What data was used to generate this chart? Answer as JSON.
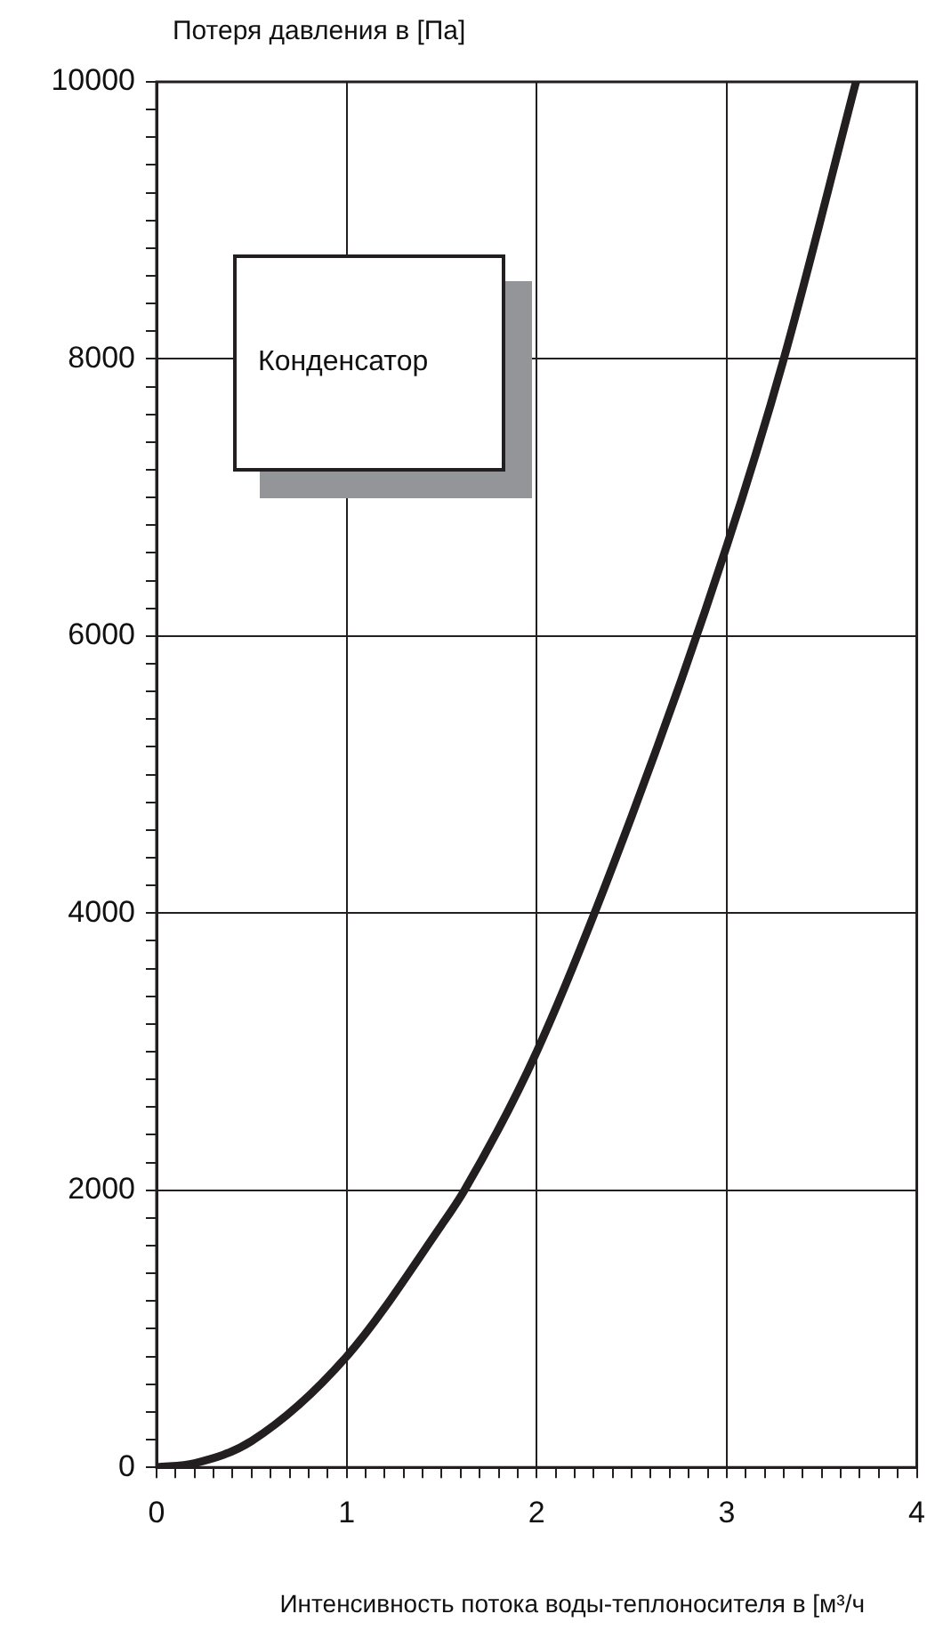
{
  "chart_data": {
    "type": "line",
    "xlabel": "Интенсивность потока воды-теплоносителя в [м³/ч",
    "ylabel": "Потеря давления в [Па]",
    "annotations": [
      "Конденсатор"
    ],
    "series": [
      {
        "color": "#231f20",
        "x": [
          0,
          0.2,
          0.5,
          1,
          1.5,
          1.62,
          2,
          2.5,
          3,
          3.3,
          3.68
        ],
        "values": [
          0,
          30,
          190,
          800,
          1750,
          2000,
          3000,
          4700,
          6650,
          8000,
          10000
        ]
      }
    ],
    "xlim": [
      0,
      4
    ],
    "ylim": [
      0,
      10000
    ],
    "xticks": [
      0,
      {
        "value": 0.1,
        "label": null
      },
      {
        "value": 0.2,
        "label": null
      },
      {
        "value": 0.3,
        "label": null
      },
      {
        "value": 0.4,
        "label": null
      },
      {
        "value": 0.5,
        "label": null
      },
      {
        "value": 0.6,
        "label": null
      },
      {
        "value": 0.7,
        "label": null
      },
      {
        "value": 0.8,
        "label": null
      },
      {
        "value": 0.9,
        "label": null
      },
      1,
      {
        "value": 1.1,
        "label": null
      },
      {
        "value": 1.2,
        "label": null
      },
      {
        "value": 1.3,
        "label": null
      },
      {
        "value": 1.4,
        "label": null
      },
      {
        "value": 1.5,
        "label": null
      },
      {
        "value": 1.6,
        "label": null
      },
      {
        "value": 1.7,
        "label": null
      },
      {
        "value": 1.8,
        "label": null
      },
      {
        "value": 1.9,
        "label": null
      },
      2,
      {
        "value": 2.1,
        "label": null
      },
      {
        "value": 2.2,
        "label": null
      },
      {
        "value": 2.3,
        "label": null
      },
      {
        "value": 2.4,
        "label": null
      },
      {
        "value": 2.5,
        "label": null
      },
      {
        "value": 2.6,
        "label": null
      },
      {
        "value": 2.7,
        "label": null
      },
      {
        "value": 2.8,
        "label": null
      },
      {
        "value": 2.9,
        "label": null
      },
      3,
      {
        "value": 3.1,
        "label": null
      },
      {
        "value": 3.2,
        "label": null
      },
      {
        "value": 3.3,
        "label": null
      },
      {
        "value": 3.4,
        "label": null
      },
      {
        "value": 3.5,
        "label": null
      },
      {
        "value": 3.6,
        "label": null
      },
      {
        "value": 3.7,
        "label": null
      },
      {
        "value": 3.8,
        "label": null
      },
      {
        "value": 3.9,
        "label": null
      },
      4
    ],
    "yticks": [
      0,
      {
        "value": 200,
        "label": null
      },
      {
        "value": 400,
        "label": null
      },
      {
        "value": 600,
        "label": null
      },
      {
        "value": 800,
        "label": null
      },
      {
        "value": 1000,
        "label": null
      },
      {
        "value": 1200,
        "label": null
      },
      {
        "value": 1400,
        "label": null
      },
      {
        "value": 1600,
        "label": null
      },
      {
        "value": 1800,
        "label": null
      },
      2000,
      {
        "value": 2200,
        "label": null
      },
      {
        "value": 2400,
        "label": null
      },
      {
        "value": 2600,
        "label": null
      },
      {
        "value": 2800,
        "label": null
      },
      {
        "value": 3000,
        "label": null
      },
      {
        "value": 3200,
        "label": null
      },
      {
        "value": 3400,
        "label": null
      },
      {
        "value": 3600,
        "label": null
      },
      {
        "value": 3800,
        "label": null
      },
      4000,
      {
        "value": 4200,
        "label": null
      },
      {
        "value": 4400,
        "label": null
      },
      {
        "value": 4600,
        "label": null
      },
      {
        "value": 4800,
        "label": null
      },
      {
        "value": 5000,
        "label": null
      },
      {
        "value": 5200,
        "label": null
      },
      {
        "value": 5400,
        "label": null
      },
      {
        "value": 5600,
        "label": null
      },
      {
        "value": 5800,
        "label": null
      },
      6000,
      {
        "value": 6200,
        "label": null
      },
      {
        "value": 6400,
        "label": null
      },
      {
        "value": 6600,
        "label": null
      },
      {
        "value": 6800,
        "label": null
      },
      {
        "value": 7000,
        "label": null
      },
      {
        "value": 7200,
        "label": null
      },
      {
        "value": 7400,
        "label": null
      },
      {
        "value": 7600,
        "label": null
      },
      {
        "value": 7800,
        "label": null
      },
      8000,
      {
        "value": 8200,
        "label": null
      },
      {
        "value": 8400,
        "label": null
      },
      {
        "value": 8600,
        "label": null
      },
      {
        "value": 8800,
        "label": null
      },
      {
        "value": 9000,
        "label": null
      },
      {
        "value": 9200,
        "label": null
      },
      {
        "value": 9400,
        "label": null
      },
      {
        "value": 9600,
        "label": null
      },
      {
        "value": 9800,
        "label": null
      },
      10000
    ],
    "grid": true,
    "legend": false,
    "marker": "none",
    "line_style": "solid"
  }
}
